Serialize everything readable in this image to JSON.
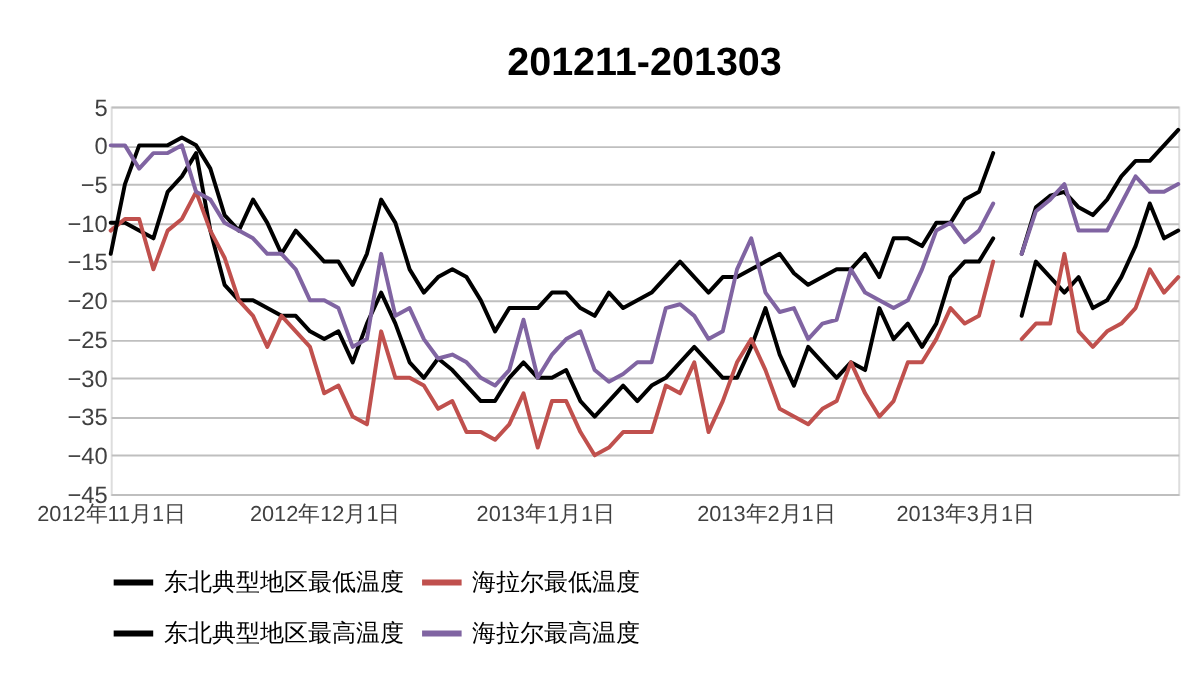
{
  "chart_data": {
    "type": "line",
    "title": "201211-201303",
    "x": [
      "2012-11-01",
      "2012-11-03",
      "2012-11-05",
      "2012-11-07",
      "2012-11-09",
      "2012-11-11",
      "2012-11-13",
      "2012-11-15",
      "2012-11-17",
      "2012-11-19",
      "2012-11-21",
      "2012-11-23",
      "2012-11-25",
      "2012-11-27",
      "2012-11-29",
      "2012-12-01",
      "2012-12-03",
      "2012-12-05",
      "2012-12-07",
      "2012-12-09",
      "2012-12-11",
      "2012-12-13",
      "2012-12-15",
      "2012-12-17",
      "2012-12-19",
      "2012-12-21",
      "2012-12-23",
      "2012-12-25",
      "2012-12-27",
      "2012-12-29",
      "2012-12-31",
      "2013-01-02",
      "2013-01-04",
      "2013-01-06",
      "2013-01-08",
      "2013-01-10",
      "2013-01-12",
      "2013-01-14",
      "2013-01-16",
      "2013-01-18",
      "2013-01-20",
      "2013-01-22",
      "2013-01-24",
      "2013-01-26",
      "2013-01-28",
      "2013-01-30",
      "2013-02-01",
      "2013-02-03",
      "2013-02-05",
      "2013-02-07",
      "2013-02-09",
      "2013-02-11",
      "2013-02-13",
      "2013-02-15",
      "2013-02-17",
      "2013-02-19",
      "2013-02-21",
      "2013-02-23",
      "2013-02-25",
      "2013-02-27",
      "2013-03-01",
      "2013-03-03",
      "2013-03-05",
      "2013-03-07",
      "2013-03-09",
      "2013-03-11",
      "2013-03-13",
      "2013-03-15",
      "2013-03-17",
      "2013-03-19",
      "2013-03-21",
      "2013-03-23",
      "2013-03-25",
      "2013-03-27",
      "2013-03-29",
      "2013-03-31"
    ],
    "series": [
      {
        "name": "东北典型地区最低温度",
        "color": "#000000",
        "values": [
          -10,
          -10,
          -11,
          -12,
          -6,
          -4,
          -1,
          -11,
          -18,
          -20,
          -20,
          -21,
          -22,
          -22,
          -24,
          -25,
          -24,
          -28,
          -23,
          -19,
          -23,
          -28,
          -30,
          -27.5,
          -29,
          -31,
          -33,
          -33,
          -30,
          -28,
          -30,
          -30,
          -29,
          -33,
          -35,
          -33,
          -31,
          -33,
          -31,
          -30,
          -28,
          -26,
          -28,
          -30,
          -30,
          -26,
          -21,
          -27,
          -31,
          -26,
          -28,
          -30,
          -28,
          -29,
          -21,
          -25,
          -23,
          -26,
          -23,
          -17,
          -15,
          -15,
          -12,
          null,
          -22,
          -15,
          -17,
          -19,
          -17,
          -21,
          -20,
          -17,
          -13,
          -7.5,
          -12,
          -11
        ]
      },
      {
        "name": "海拉尔最低温度",
        "color": "#c0504d",
        "values": [
          -11,
          -9.5,
          -9.5,
          -16,
          -11,
          -9.5,
          -6,
          -11,
          -14.5,
          -20,
          -22,
          -26,
          -22,
          -24,
          -26,
          -32,
          -31,
          -35,
          -36,
          -24,
          -30,
          -30,
          -31,
          -34,
          -33,
          -37,
          -37,
          -38,
          -36,
          -32,
          -39,
          -33,
          -33,
          -37,
          -40,
          -39,
          -37,
          -37,
          -37,
          -31,
          -32,
          -28,
          -37,
          -33,
          -28,
          -25,
          -29,
          -34,
          -35,
          -36,
          -34,
          -33,
          -28,
          -32,
          -35,
          -33,
          -28,
          -28,
          -25,
          -21,
          -23,
          -22,
          -15,
          null,
          -25,
          -23,
          -23,
          -14,
          -24,
          -26,
          -24,
          -23,
          -21,
          -16,
          -19,
          -17
        ]
      },
      {
        "name": "东北典型地区最高温度",
        "color": "#000000",
        "values": [
          -14,
          -5,
          0,
          0,
          0,
          1,
          0,
          -3,
          -9,
          -11,
          -7,
          -10,
          -14,
          -11,
          -13,
          -15,
          -15,
          -18,
          -14,
          -7,
          -10,
          -16,
          -19,
          -17,
          -16,
          -17,
          -20,
          -24,
          -21,
          -21,
          -21,
          -19,
          -19,
          -21,
          -22,
          -19,
          -21,
          -20,
          -19,
          -17,
          -15,
          -17,
          -19,
          -17,
          -17,
          -16,
          -15,
          -14,
          -16.5,
          -18,
          -17,
          -16,
          -16,
          -14,
          -17,
          -12,
          -12,
          -13,
          -10,
          -10,
          -7,
          -6,
          -1,
          null,
          -14,
          -8,
          -6.5,
          -6,
          -8,
          -9,
          -7,
          -4,
          -2,
          -2,
          0,
          2
        ]
      },
      {
        "name": "海拉尔最高温度",
        "color": "#8064a2",
        "values": [
          0,
          0,
          -3,
          -1,
          -1,
          0,
          -6,
          -7,
          -10,
          -11,
          -12,
          -14,
          -14,
          -16,
          -20,
          -20,
          -21,
          -26,
          -25,
          -14,
          -22,
          -21,
          -25,
          -27.5,
          -27,
          -28,
          -30,
          -31,
          -29,
          -22.5,
          -30,
          -27,
          -25,
          -24,
          -29,
          -30.5,
          -29.5,
          -28,
          -28,
          -21,
          -20.5,
          -22,
          -25,
          -24,
          -16,
          -12,
          -19,
          -21.5,
          -21,
          -25,
          -23,
          -22.5,
          -16,
          -19,
          -20,
          -21,
          -20,
          -16,
          -11,
          -10,
          -12.5,
          -11,
          -7.5,
          null,
          -14,
          -8.5,
          -7,
          -5,
          -11,
          -11,
          -11,
          -7.5,
          -4,
          -6,
          -6,
          -5
        ]
      }
    ],
    "xlim": [
      "2012-11-01",
      "2013-03-31"
    ],
    "xticks": [
      {
        "value": "2012-11-01",
        "label": "2012年11月1日"
      },
      {
        "value": "2012-12-01",
        "label": "2012年12月1日"
      },
      {
        "value": "2013-01-01",
        "label": "2013年1月1日"
      },
      {
        "value": "2013-02-01",
        "label": "2013年2月1日"
      },
      {
        "value": "2013-03-01",
        "label": "2013年3月1日"
      }
    ],
    "ylim": [
      -45,
      5
    ],
    "yticks": [
      -45,
      -40,
      -35,
      -30,
      -25,
      -20,
      -15,
      -10,
      -5,
      0,
      5
    ],
    "grid": "y",
    "legend": "bottom"
  }
}
